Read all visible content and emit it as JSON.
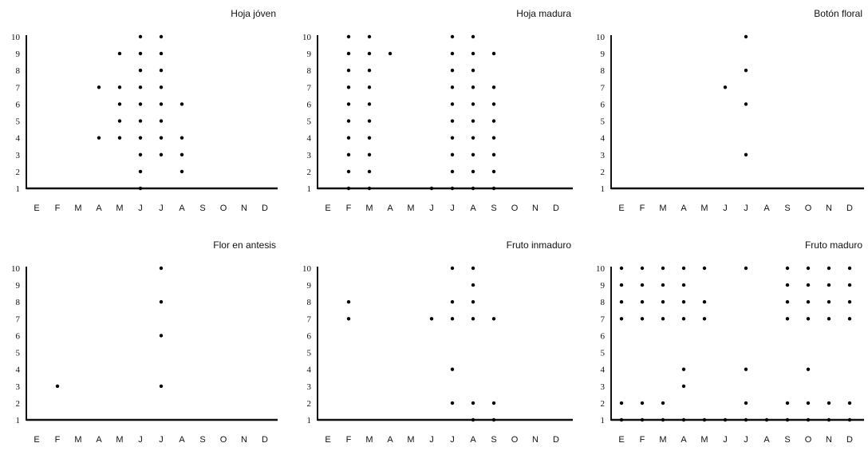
{
  "months": [
    "E",
    "F",
    "M",
    "A",
    "M",
    "J",
    "J",
    "A",
    "S",
    "O",
    "N",
    "D"
  ],
  "y_ticks": [
    1,
    2,
    3,
    4,
    5,
    6,
    7,
    8,
    9,
    10
  ],
  "chart_data": [
    {
      "type": "scatter",
      "title": "Hoja jóven",
      "ylim": [
        1,
        10
      ],
      "points": [
        {
          "m": "A",
          "x": 4,
          "y": 7
        },
        {
          "m": "A",
          "x": 4,
          "y": 4
        },
        {
          "m": "M",
          "x": 5,
          "y": 9
        },
        {
          "m": "M",
          "x": 5,
          "y": 7
        },
        {
          "m": "M",
          "x": 5,
          "y": 6
        },
        {
          "m": "M",
          "x": 5,
          "y": 5
        },
        {
          "m": "M",
          "x": 5,
          "y": 4
        },
        {
          "m": "J",
          "x": 6,
          "y": 10
        },
        {
          "m": "J",
          "x": 6,
          "y": 9
        },
        {
          "m": "J",
          "x": 6,
          "y": 8
        },
        {
          "m": "J",
          "x": 6,
          "y": 7
        },
        {
          "m": "J",
          "x": 6,
          "y": 6
        },
        {
          "m": "J",
          "x": 6,
          "y": 5
        },
        {
          "m": "J",
          "x": 6,
          "y": 4
        },
        {
          "m": "J",
          "x": 6,
          "y": 3
        },
        {
          "m": "J",
          "x": 6,
          "y": 2
        },
        {
          "m": "J",
          "x": 6,
          "y": 1
        },
        {
          "m": "J",
          "x": 7,
          "y": 10
        },
        {
          "m": "J",
          "x": 7,
          "y": 9
        },
        {
          "m": "J",
          "x": 7,
          "y": 8
        },
        {
          "m": "J",
          "x": 7,
          "y": 7
        },
        {
          "m": "J",
          "x": 7,
          "y": 6
        },
        {
          "m": "J",
          "x": 7,
          "y": 5
        },
        {
          "m": "J",
          "x": 7,
          "y": 4
        },
        {
          "m": "J",
          "x": 7,
          "y": 3
        },
        {
          "m": "A",
          "x": 8,
          "y": 6
        },
        {
          "m": "A",
          "x": 8,
          "y": 4
        },
        {
          "m": "A",
          "x": 8,
          "y": 3
        },
        {
          "m": "A",
          "x": 8,
          "y": 2
        }
      ]
    },
    {
      "type": "scatter",
      "title": "Hoja madura",
      "ylim": [
        1,
        10
      ],
      "points": [
        {
          "m": "F",
          "x": 2,
          "y": 10
        },
        {
          "m": "F",
          "x": 2,
          "y": 9
        },
        {
          "m": "F",
          "x": 2,
          "y": 8
        },
        {
          "m": "F",
          "x": 2,
          "y": 7
        },
        {
          "m": "F",
          "x": 2,
          "y": 6
        },
        {
          "m": "F",
          "x": 2,
          "y": 5
        },
        {
          "m": "F",
          "x": 2,
          "y": 4
        },
        {
          "m": "F",
          "x": 2,
          "y": 3
        },
        {
          "m": "F",
          "x": 2,
          "y": 2
        },
        {
          "m": "F",
          "x": 2,
          "y": 1
        },
        {
          "m": "M",
          "x": 3,
          "y": 10
        },
        {
          "m": "M",
          "x": 3,
          "y": 9
        },
        {
          "m": "M",
          "x": 3,
          "y": 8
        },
        {
          "m": "M",
          "x": 3,
          "y": 7
        },
        {
          "m": "M",
          "x": 3,
          "y": 6
        },
        {
          "m": "M",
          "x": 3,
          "y": 5
        },
        {
          "m": "M",
          "x": 3,
          "y": 4
        },
        {
          "m": "M",
          "x": 3,
          "y": 3
        },
        {
          "m": "M",
          "x": 3,
          "y": 2
        },
        {
          "m": "M",
          "x": 3,
          "y": 1
        },
        {
          "m": "A",
          "x": 4,
          "y": 9
        },
        {
          "m": "J",
          "x": 6,
          "y": 1
        },
        {
          "m": "J",
          "x": 7,
          "y": 10
        },
        {
          "m": "J",
          "x": 7,
          "y": 9
        },
        {
          "m": "J",
          "x": 7,
          "y": 8
        },
        {
          "m": "J",
          "x": 7,
          "y": 7
        },
        {
          "m": "J",
          "x": 7,
          "y": 6
        },
        {
          "m": "J",
          "x": 7,
          "y": 5
        },
        {
          "m": "J",
          "x": 7,
          "y": 4
        },
        {
          "m": "J",
          "x": 7,
          "y": 3
        },
        {
          "m": "J",
          "x": 7,
          "y": 2
        },
        {
          "m": "J",
          "x": 7,
          "y": 1
        },
        {
          "m": "A",
          "x": 8,
          "y": 10
        },
        {
          "m": "A",
          "x": 8,
          "y": 9
        },
        {
          "m": "A",
          "x": 8,
          "y": 8
        },
        {
          "m": "A",
          "x": 8,
          "y": 7
        },
        {
          "m": "A",
          "x": 8,
          "y": 6
        },
        {
          "m": "A",
          "x": 8,
          "y": 5
        },
        {
          "m": "A",
          "x": 8,
          "y": 4
        },
        {
          "m": "A",
          "x": 8,
          "y": 3
        },
        {
          "m": "A",
          "x": 8,
          "y": 2
        },
        {
          "m": "A",
          "x": 8,
          "y": 1
        },
        {
          "m": "S",
          "x": 9,
          "y": 9
        },
        {
          "m": "S",
          "x": 9,
          "y": 7
        },
        {
          "m": "S",
          "x": 9,
          "y": 6
        },
        {
          "m": "S",
          "x": 9,
          "y": 5
        },
        {
          "m": "S",
          "x": 9,
          "y": 4
        },
        {
          "m": "S",
          "x": 9,
          "y": 3
        },
        {
          "m": "S",
          "x": 9,
          "y": 2
        },
        {
          "m": "S",
          "x": 9,
          "y": 1
        }
      ]
    },
    {
      "type": "scatter",
      "title": "Botón floral",
      "ylim": [
        1,
        10
      ],
      "points": [
        {
          "m": "J",
          "x": 6,
          "y": 7
        },
        {
          "m": "J",
          "x": 7,
          "y": 10
        },
        {
          "m": "J",
          "x": 7,
          "y": 8
        },
        {
          "m": "J",
          "x": 7,
          "y": 6
        },
        {
          "m": "J",
          "x": 7,
          "y": 3
        }
      ]
    },
    {
      "type": "scatter",
      "title": "Flor en antesis",
      "ylim": [
        1,
        10
      ],
      "points": [
        {
          "m": "F",
          "x": 2,
          "y": 3
        },
        {
          "m": "J",
          "x": 7,
          "y": 10
        },
        {
          "m": "J",
          "x": 7,
          "y": 8
        },
        {
          "m": "J",
          "x": 7,
          "y": 6
        },
        {
          "m": "J",
          "x": 7,
          "y": 3
        }
      ]
    },
    {
      "type": "scatter",
      "title": "Fruto inmaduro",
      "ylim": [
        1,
        10
      ],
      "points": [
        {
          "m": "F",
          "x": 2,
          "y": 8
        },
        {
          "m": "F",
          "x": 2,
          "y": 7
        },
        {
          "m": "J",
          "x": 6,
          "y": 7
        },
        {
          "m": "J",
          "x": 7,
          "y": 10
        },
        {
          "m": "J",
          "x": 7,
          "y": 8
        },
        {
          "m": "J",
          "x": 7,
          "y": 7
        },
        {
          "m": "J",
          "x": 7,
          "y": 4
        },
        {
          "m": "J",
          "x": 7,
          "y": 2
        },
        {
          "m": "A",
          "x": 8,
          "y": 10
        },
        {
          "m": "A",
          "x": 8,
          "y": 9
        },
        {
          "m": "A",
          "x": 8,
          "y": 8
        },
        {
          "m": "A",
          "x": 8,
          "y": 7
        },
        {
          "m": "A",
          "x": 8,
          "y": 2
        },
        {
          "m": "A",
          "x": 8,
          "y": 1
        },
        {
          "m": "S",
          "x": 9,
          "y": 7
        },
        {
          "m": "S",
          "x": 9,
          "y": 2
        },
        {
          "m": "S",
          "x": 9,
          "y": 1
        }
      ]
    },
    {
      "type": "scatter",
      "title": "Fruto maduro",
      "ylim": [
        1,
        10
      ],
      "points": [
        {
          "m": "E",
          "x": 1,
          "y": 10
        },
        {
          "m": "E",
          "x": 1,
          "y": 9
        },
        {
          "m": "E",
          "x": 1,
          "y": 8
        },
        {
          "m": "E",
          "x": 1,
          "y": 7
        },
        {
          "m": "E",
          "x": 1,
          "y": 2
        },
        {
          "m": "E",
          "x": 1,
          "y": 1
        },
        {
          "m": "F",
          "x": 2,
          "y": 10
        },
        {
          "m": "F",
          "x": 2,
          "y": 9
        },
        {
          "m": "F",
          "x": 2,
          "y": 8
        },
        {
          "m": "F",
          "x": 2,
          "y": 7
        },
        {
          "m": "F",
          "x": 2,
          "y": 2
        },
        {
          "m": "F",
          "x": 2,
          "y": 1
        },
        {
          "m": "M",
          "x": 3,
          "y": 10
        },
        {
          "m": "M",
          "x": 3,
          "y": 9
        },
        {
          "m": "M",
          "x": 3,
          "y": 8
        },
        {
          "m": "M",
          "x": 3,
          "y": 7
        },
        {
          "m": "M",
          "x": 3,
          "y": 2
        },
        {
          "m": "M",
          "x": 3,
          "y": 1
        },
        {
          "m": "A",
          "x": 4,
          "y": 10
        },
        {
          "m": "A",
          "x": 4,
          "y": 9
        },
        {
          "m": "A",
          "x": 4,
          "y": 8
        },
        {
          "m": "A",
          "x": 4,
          "y": 7
        },
        {
          "m": "A",
          "x": 4,
          "y": 4
        },
        {
          "m": "A",
          "x": 4,
          "y": 3
        },
        {
          "m": "A",
          "x": 4,
          "y": 1
        },
        {
          "m": "M",
          "x": 5,
          "y": 10
        },
        {
          "m": "M",
          "x": 5,
          "y": 8
        },
        {
          "m": "M",
          "x": 5,
          "y": 7
        },
        {
          "m": "M",
          "x": 5,
          "y": 1
        },
        {
          "m": "J",
          "x": 6,
          "y": 1
        },
        {
          "m": "J",
          "x": 7,
          "y": 10
        },
        {
          "m": "J",
          "x": 7,
          "y": 4
        },
        {
          "m": "J",
          "x": 7,
          "y": 2
        },
        {
          "m": "J",
          "x": 7,
          "y": 1
        },
        {
          "m": "A",
          "x": 8,
          "y": 1
        },
        {
          "m": "S",
          "x": 9,
          "y": 10
        },
        {
          "m": "S",
          "x": 9,
          "y": 9
        },
        {
          "m": "S",
          "x": 9,
          "y": 8
        },
        {
          "m": "S",
          "x": 9,
          "y": 7
        },
        {
          "m": "S",
          "x": 9,
          "y": 2
        },
        {
          "m": "S",
          "x": 9,
          "y": 1
        },
        {
          "m": "O",
          "x": 10,
          "y": 10
        },
        {
          "m": "O",
          "x": 10,
          "y": 9
        },
        {
          "m": "O",
          "x": 10,
          "y": 8
        },
        {
          "m": "O",
          "x": 10,
          "y": 7
        },
        {
          "m": "O",
          "x": 10,
          "y": 4
        },
        {
          "m": "O",
          "x": 10,
          "y": 2
        },
        {
          "m": "O",
          "x": 10,
          "y": 1
        },
        {
          "m": "N",
          "x": 11,
          "y": 10
        },
        {
          "m": "N",
          "x": 11,
          "y": 9
        },
        {
          "m": "N",
          "x": 11,
          "y": 8
        },
        {
          "m": "N",
          "x": 11,
          "y": 7
        },
        {
          "m": "N",
          "x": 11,
          "y": 2
        },
        {
          "m": "N",
          "x": 11,
          "y": 1
        },
        {
          "m": "D",
          "x": 12,
          "y": 10
        },
        {
          "m": "D",
          "x": 12,
          "y": 9
        },
        {
          "m": "D",
          "x": 12,
          "y": 8
        },
        {
          "m": "D",
          "x": 12,
          "y": 7
        },
        {
          "m": "D",
          "x": 12,
          "y": 2
        },
        {
          "m": "D",
          "x": 12,
          "y": 1
        }
      ]
    }
  ]
}
